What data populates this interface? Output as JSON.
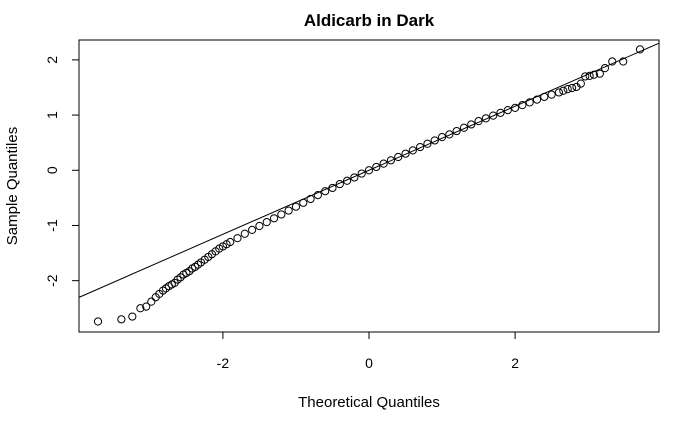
{
  "chart_data": {
    "type": "scatter",
    "title": "Aldicarb in Dark",
    "xlabel": "Theoretical Quantiles",
    "ylabel": "Sample Quantiles",
    "xlim": [
      -3.97,
      3.97
    ],
    "ylim": [
      -2.93,
      2.36
    ],
    "x_ticks": [
      -2,
      0,
      2
    ],
    "x_tick_labels": [
      "-2",
      "0",
      "2"
    ],
    "y_ticks": [
      -2,
      -1,
      0,
      1,
      2
    ],
    "y_tick_labels": [
      "-2",
      "-1",
      "0",
      "1",
      "2"
    ],
    "reference_line": {
      "intercept": 0.0,
      "slope": 0.58
    },
    "grid": false,
    "point_style": "open-circle",
    "series": [
      {
        "points": [
          [
            -3.71,
            -2.74
          ],
          [
            -3.39,
            -2.7
          ],
          [
            -3.24,
            -2.65
          ],
          [
            -3.13,
            -2.5
          ],
          [
            -3.05,
            -2.47
          ],
          [
            -2.98,
            -2.38
          ],
          [
            -2.92,
            -2.3
          ],
          [
            -2.87,
            -2.24
          ],
          [
            -2.82,
            -2.18
          ],
          [
            -2.78,
            -2.14
          ],
          [
            -2.74,
            -2.1
          ],
          [
            -2.7,
            -2.07
          ],
          [
            -2.66,
            -2.04
          ],
          [
            -2.62,
            -1.98
          ],
          [
            -2.58,
            -1.94
          ],
          [
            -2.54,
            -1.89
          ],
          [
            -2.5,
            -1.86
          ],
          [
            -2.46,
            -1.83
          ],
          [
            -2.42,
            -1.78
          ],
          [
            -2.38,
            -1.75
          ],
          [
            -2.34,
            -1.71
          ],
          [
            -2.3,
            -1.67
          ],
          [
            -2.25,
            -1.62
          ],
          [
            -2.2,
            -1.57
          ],
          [
            -2.15,
            -1.52
          ],
          [
            -2.1,
            -1.47
          ],
          [
            -2.05,
            -1.42
          ],
          [
            -2.0,
            -1.38
          ],
          [
            -1.95,
            -1.34
          ],
          [
            -1.9,
            -1.3
          ],
          [
            -1.8,
            -1.23
          ],
          [
            -1.7,
            -1.15
          ],
          [
            -1.6,
            -1.08
          ],
          [
            -1.5,
            -1.01
          ],
          [
            -1.4,
            -0.94
          ],
          [
            -1.3,
            -0.87
          ],
          [
            -1.2,
            -0.8
          ],
          [
            -1.1,
            -0.73
          ],
          [
            -1.0,
            -0.66
          ],
          [
            -0.9,
            -0.59
          ],
          [
            -0.8,
            -0.52
          ],
          [
            -0.7,
            -0.45
          ],
          [
            -0.6,
            -0.38
          ],
          [
            -0.5,
            -0.32
          ],
          [
            -0.4,
            -0.25
          ],
          [
            -0.3,
            -0.19
          ],
          [
            -0.2,
            -0.13
          ],
          [
            -0.1,
            -0.06
          ],
          [
            0.0,
            0.0
          ],
          [
            0.1,
            0.06
          ],
          [
            0.2,
            0.12
          ],
          [
            0.3,
            0.18
          ],
          [
            0.4,
            0.24
          ],
          [
            0.5,
            0.3
          ],
          [
            0.6,
            0.36
          ],
          [
            0.7,
            0.42
          ],
          [
            0.8,
            0.48
          ],
          [
            0.9,
            0.54
          ],
          [
            1.0,
            0.6
          ],
          [
            1.1,
            0.65
          ],
          [
            1.2,
            0.71
          ],
          [
            1.3,
            0.77
          ],
          [
            1.4,
            0.83
          ],
          [
            1.5,
            0.89
          ],
          [
            1.6,
            0.94
          ],
          [
            1.7,
            0.99
          ],
          [
            1.8,
            1.04
          ],
          [
            1.9,
            1.09
          ],
          [
            2.0,
            1.13
          ],
          [
            2.1,
            1.18
          ],
          [
            2.2,
            1.23
          ],
          [
            2.3,
            1.28
          ],
          [
            2.4,
            1.33
          ],
          [
            2.5,
            1.37
          ],
          [
            2.6,
            1.41
          ],
          [
            2.66,
            1.44
          ],
          [
            2.72,
            1.47
          ],
          [
            2.78,
            1.49
          ],
          [
            2.84,
            1.51
          ],
          [
            2.9,
            1.57
          ],
          [
            2.96,
            1.7
          ],
          [
            3.02,
            1.71
          ],
          [
            3.08,
            1.73
          ],
          [
            3.16,
            1.75
          ],
          [
            3.23,
            1.85
          ],
          [
            3.33,
            1.97
          ],
          [
            3.48,
            1.97
          ],
          [
            3.71,
            2.19
          ]
        ]
      }
    ]
  }
}
